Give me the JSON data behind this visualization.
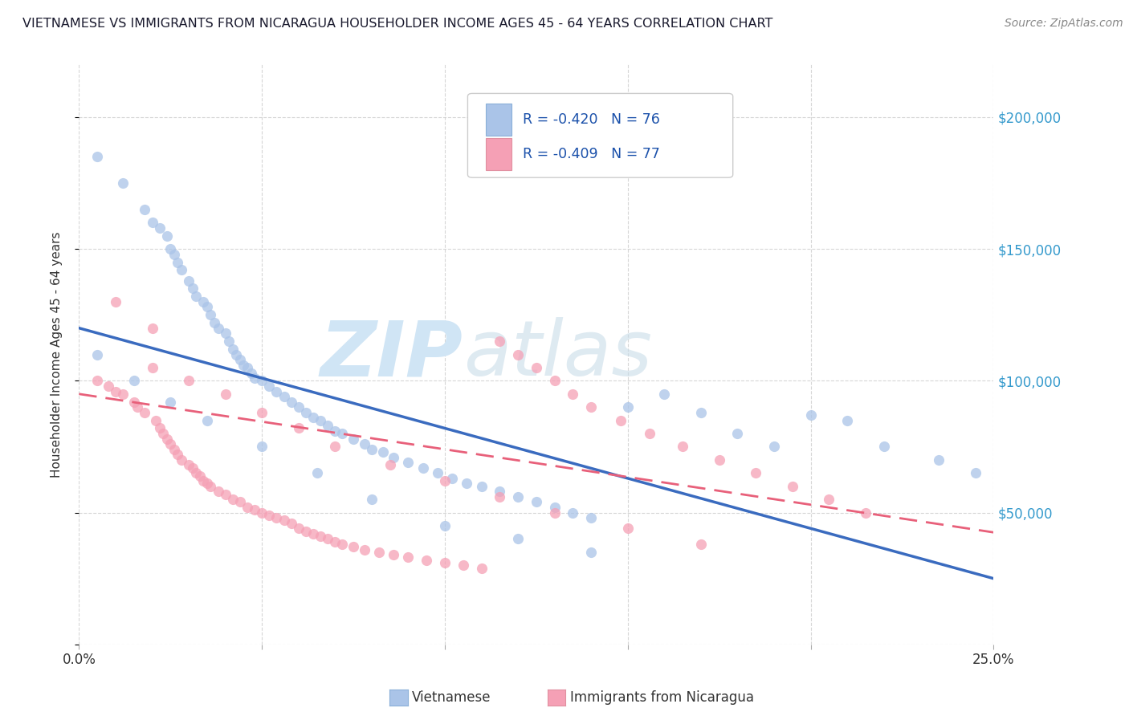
{
  "title": "VIETNAMESE VS IMMIGRANTS FROM NICARAGUA HOUSEHOLDER INCOME AGES 45 - 64 YEARS CORRELATION CHART",
  "source": "Source: ZipAtlas.com",
  "ylabel": "Householder Income Ages 45 - 64 years",
  "xlim": [
    0.0,
    0.25
  ],
  "ylim": [
    0,
    220000
  ],
  "legend_r1": "-0.420",
  "legend_n1": "76",
  "legend_r2": "-0.409",
  "legend_n2": "77",
  "color_viet": "#aac4e8",
  "color_nica": "#f5a0b5",
  "line_color_viet": "#3a6bbf",
  "line_color_nica": "#e8607a",
  "title_color": "#1a1a2e",
  "r_color": "#1a50aa",
  "n_color": "#1a50aa",
  "ytick_color": "#3399cc",
  "watermark_color": "#d0e5f5",
  "background_color": "#ffffff",
  "grid_color": "#cccccc",
  "viet_x": [
    0.005,
    0.012,
    0.018,
    0.02,
    0.022,
    0.024,
    0.025,
    0.026,
    0.027,
    0.028,
    0.03,
    0.031,
    0.032,
    0.034,
    0.035,
    0.036,
    0.037,
    0.038,
    0.04,
    0.041,
    0.042,
    0.043,
    0.044,
    0.045,
    0.046,
    0.047,
    0.048,
    0.05,
    0.052,
    0.054,
    0.056,
    0.058,
    0.06,
    0.062,
    0.064,
    0.066,
    0.068,
    0.07,
    0.072,
    0.075,
    0.078,
    0.08,
    0.083,
    0.086,
    0.09,
    0.094,
    0.098,
    0.102,
    0.106,
    0.11,
    0.115,
    0.12,
    0.125,
    0.13,
    0.135,
    0.14,
    0.15,
    0.16,
    0.17,
    0.18,
    0.19,
    0.2,
    0.21,
    0.22,
    0.235,
    0.245,
    0.005,
    0.015,
    0.025,
    0.035,
    0.05,
    0.065,
    0.08,
    0.1,
    0.12,
    0.14
  ],
  "viet_y": [
    185000,
    175000,
    165000,
    160000,
    158000,
    155000,
    150000,
    148000,
    145000,
    142000,
    138000,
    135000,
    132000,
    130000,
    128000,
    125000,
    122000,
    120000,
    118000,
    115000,
    112000,
    110000,
    108000,
    106000,
    105000,
    103000,
    101000,
    100000,
    98000,
    96000,
    94000,
    92000,
    90000,
    88000,
    86000,
    85000,
    83000,
    81000,
    80000,
    78000,
    76000,
    74000,
    73000,
    71000,
    69000,
    67000,
    65000,
    63000,
    61000,
    60000,
    58000,
    56000,
    54000,
    52000,
    50000,
    48000,
    90000,
    95000,
    88000,
    80000,
    75000,
    87000,
    85000,
    75000,
    70000,
    65000,
    110000,
    100000,
    92000,
    85000,
    75000,
    65000,
    55000,
    45000,
    40000,
    35000
  ],
  "nica_x": [
    0.005,
    0.008,
    0.01,
    0.012,
    0.015,
    0.016,
    0.018,
    0.02,
    0.021,
    0.022,
    0.023,
    0.024,
    0.025,
    0.026,
    0.027,
    0.028,
    0.03,
    0.031,
    0.032,
    0.033,
    0.034,
    0.035,
    0.036,
    0.038,
    0.04,
    0.042,
    0.044,
    0.046,
    0.048,
    0.05,
    0.052,
    0.054,
    0.056,
    0.058,
    0.06,
    0.062,
    0.064,
    0.066,
    0.068,
    0.07,
    0.072,
    0.075,
    0.078,
    0.082,
    0.086,
    0.09,
    0.095,
    0.1,
    0.105,
    0.11,
    0.115,
    0.12,
    0.125,
    0.13,
    0.135,
    0.14,
    0.148,
    0.156,
    0.165,
    0.175,
    0.185,
    0.195,
    0.205,
    0.215,
    0.01,
    0.02,
    0.03,
    0.04,
    0.05,
    0.06,
    0.07,
    0.085,
    0.1,
    0.115,
    0.13,
    0.15,
    0.17
  ],
  "nica_y": [
    100000,
    98000,
    96000,
    95000,
    92000,
    90000,
    88000,
    120000,
    85000,
    82000,
    80000,
    78000,
    76000,
    74000,
    72000,
    70000,
    68000,
    67000,
    65000,
    64000,
    62000,
    61000,
    60000,
    58000,
    57000,
    55000,
    54000,
    52000,
    51000,
    50000,
    49000,
    48000,
    47000,
    46000,
    44000,
    43000,
    42000,
    41000,
    40000,
    39000,
    38000,
    37000,
    36000,
    35000,
    34000,
    33000,
    32000,
    31000,
    30000,
    29000,
    115000,
    110000,
    105000,
    100000,
    95000,
    90000,
    85000,
    80000,
    75000,
    70000,
    65000,
    60000,
    55000,
    50000,
    130000,
    105000,
    100000,
    95000,
    88000,
    82000,
    75000,
    68000,
    62000,
    56000,
    50000,
    44000,
    38000
  ]
}
